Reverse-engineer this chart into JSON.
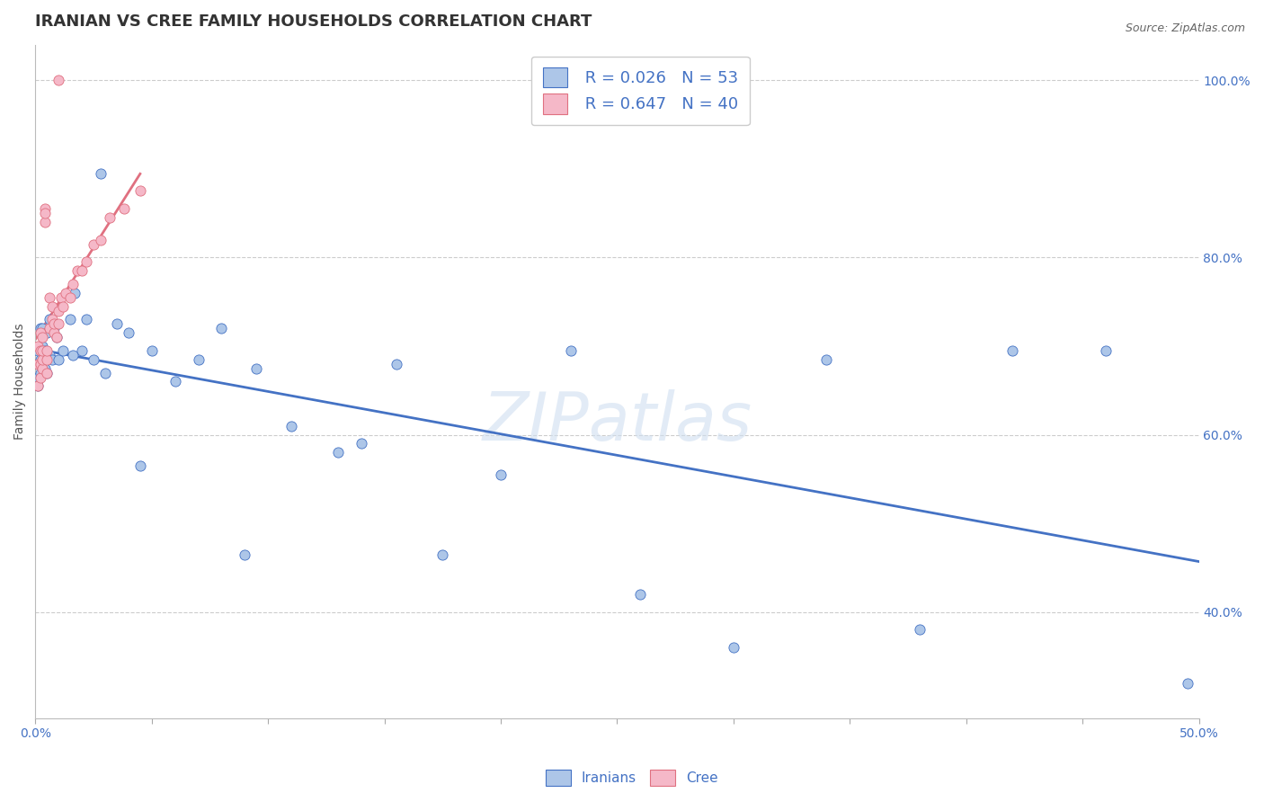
{
  "title": "IRANIAN VS CREE FAMILY HOUSEHOLDS CORRELATION CHART",
  "source": "Source: ZipAtlas.com",
  "ylabel": "Family Households",
  "legend_iranians": "Iranians",
  "legend_cree": "Cree",
  "r_iranians": 0.026,
  "n_iranians": 53,
  "r_cree": 0.647,
  "n_cree": 40,
  "color_iranians": "#adc6e8",
  "color_cree": "#f5b8c8",
  "line_color_iranians": "#4472c4",
  "line_color_cree": "#e07080",
  "iranians_x": [
    0.001,
    0.001,
    0.001,
    0.001,
    0.002,
    0.002,
    0.002,
    0.002,
    0.003,
    0.003,
    0.003,
    0.004,
    0.004,
    0.005,
    0.005,
    0.006,
    0.006,
    0.007,
    0.008,
    0.009,
    0.01,
    0.012,
    0.015,
    0.017,
    0.02,
    0.022,
    0.025,
    0.03,
    0.035,
    0.04,
    0.05,
    0.06,
    0.07,
    0.08,
    0.095,
    0.11,
    0.13,
    0.155,
    0.175,
    0.2,
    0.23,
    0.26,
    0.3,
    0.34,
    0.38,
    0.42,
    0.46,
    0.495,
    0.14,
    0.09,
    0.045,
    0.028,
    0.016
  ],
  "iranians_y": [
    0.695,
    0.68,
    0.665,
    0.655,
    0.685,
    0.67,
    0.68,
    0.72,
    0.68,
    0.7,
    0.72,
    0.675,
    0.695,
    0.67,
    0.715,
    0.69,
    0.73,
    0.685,
    0.72,
    0.71,
    0.685,
    0.695,
    0.73,
    0.76,
    0.695,
    0.73,
    0.685,
    0.67,
    0.725,
    0.715,
    0.695,
    0.66,
    0.685,
    0.72,
    0.675,
    0.61,
    0.58,
    0.68,
    0.465,
    0.555,
    0.695,
    0.42,
    0.36,
    0.685,
    0.38,
    0.695,
    0.695,
    0.32,
    0.59,
    0.465,
    0.565,
    0.895,
    0.69
  ],
  "cree_x": [
    0.001,
    0.001,
    0.001,
    0.002,
    0.002,
    0.002,
    0.002,
    0.003,
    0.003,
    0.003,
    0.003,
    0.004,
    0.004,
    0.004,
    0.005,
    0.005,
    0.005,
    0.006,
    0.006,
    0.007,
    0.007,
    0.008,
    0.008,
    0.009,
    0.01,
    0.01,
    0.011,
    0.012,
    0.013,
    0.015,
    0.016,
    0.018,
    0.02,
    0.022,
    0.025,
    0.028,
    0.032,
    0.038,
    0.045,
    0.01
  ],
  "cree_y": [
    0.655,
    0.68,
    0.7,
    0.665,
    0.68,
    0.695,
    0.715,
    0.675,
    0.685,
    0.695,
    0.71,
    0.84,
    0.855,
    0.85,
    0.67,
    0.685,
    0.695,
    0.72,
    0.755,
    0.73,
    0.745,
    0.715,
    0.725,
    0.71,
    0.725,
    0.74,
    0.755,
    0.745,
    0.76,
    0.755,
    0.77,
    0.785,
    0.785,
    0.795,
    0.815,
    0.82,
    0.845,
    0.855,
    0.875,
    1.0
  ],
  "xlim": [
    0.0,
    0.5
  ],
  "ylim": [
    0.28,
    1.04
  ],
  "yticks": [
    0.4,
    0.6,
    0.8,
    1.0
  ],
  "ytick_labels": [
    "40.0%",
    "60.0%",
    "80.0%",
    "100.0%"
  ],
  "title_fontsize": 13,
  "axis_label_fontsize": 10,
  "tick_fontsize": 10,
  "background_color": "#ffffff",
  "grid_color": "#cccccc"
}
